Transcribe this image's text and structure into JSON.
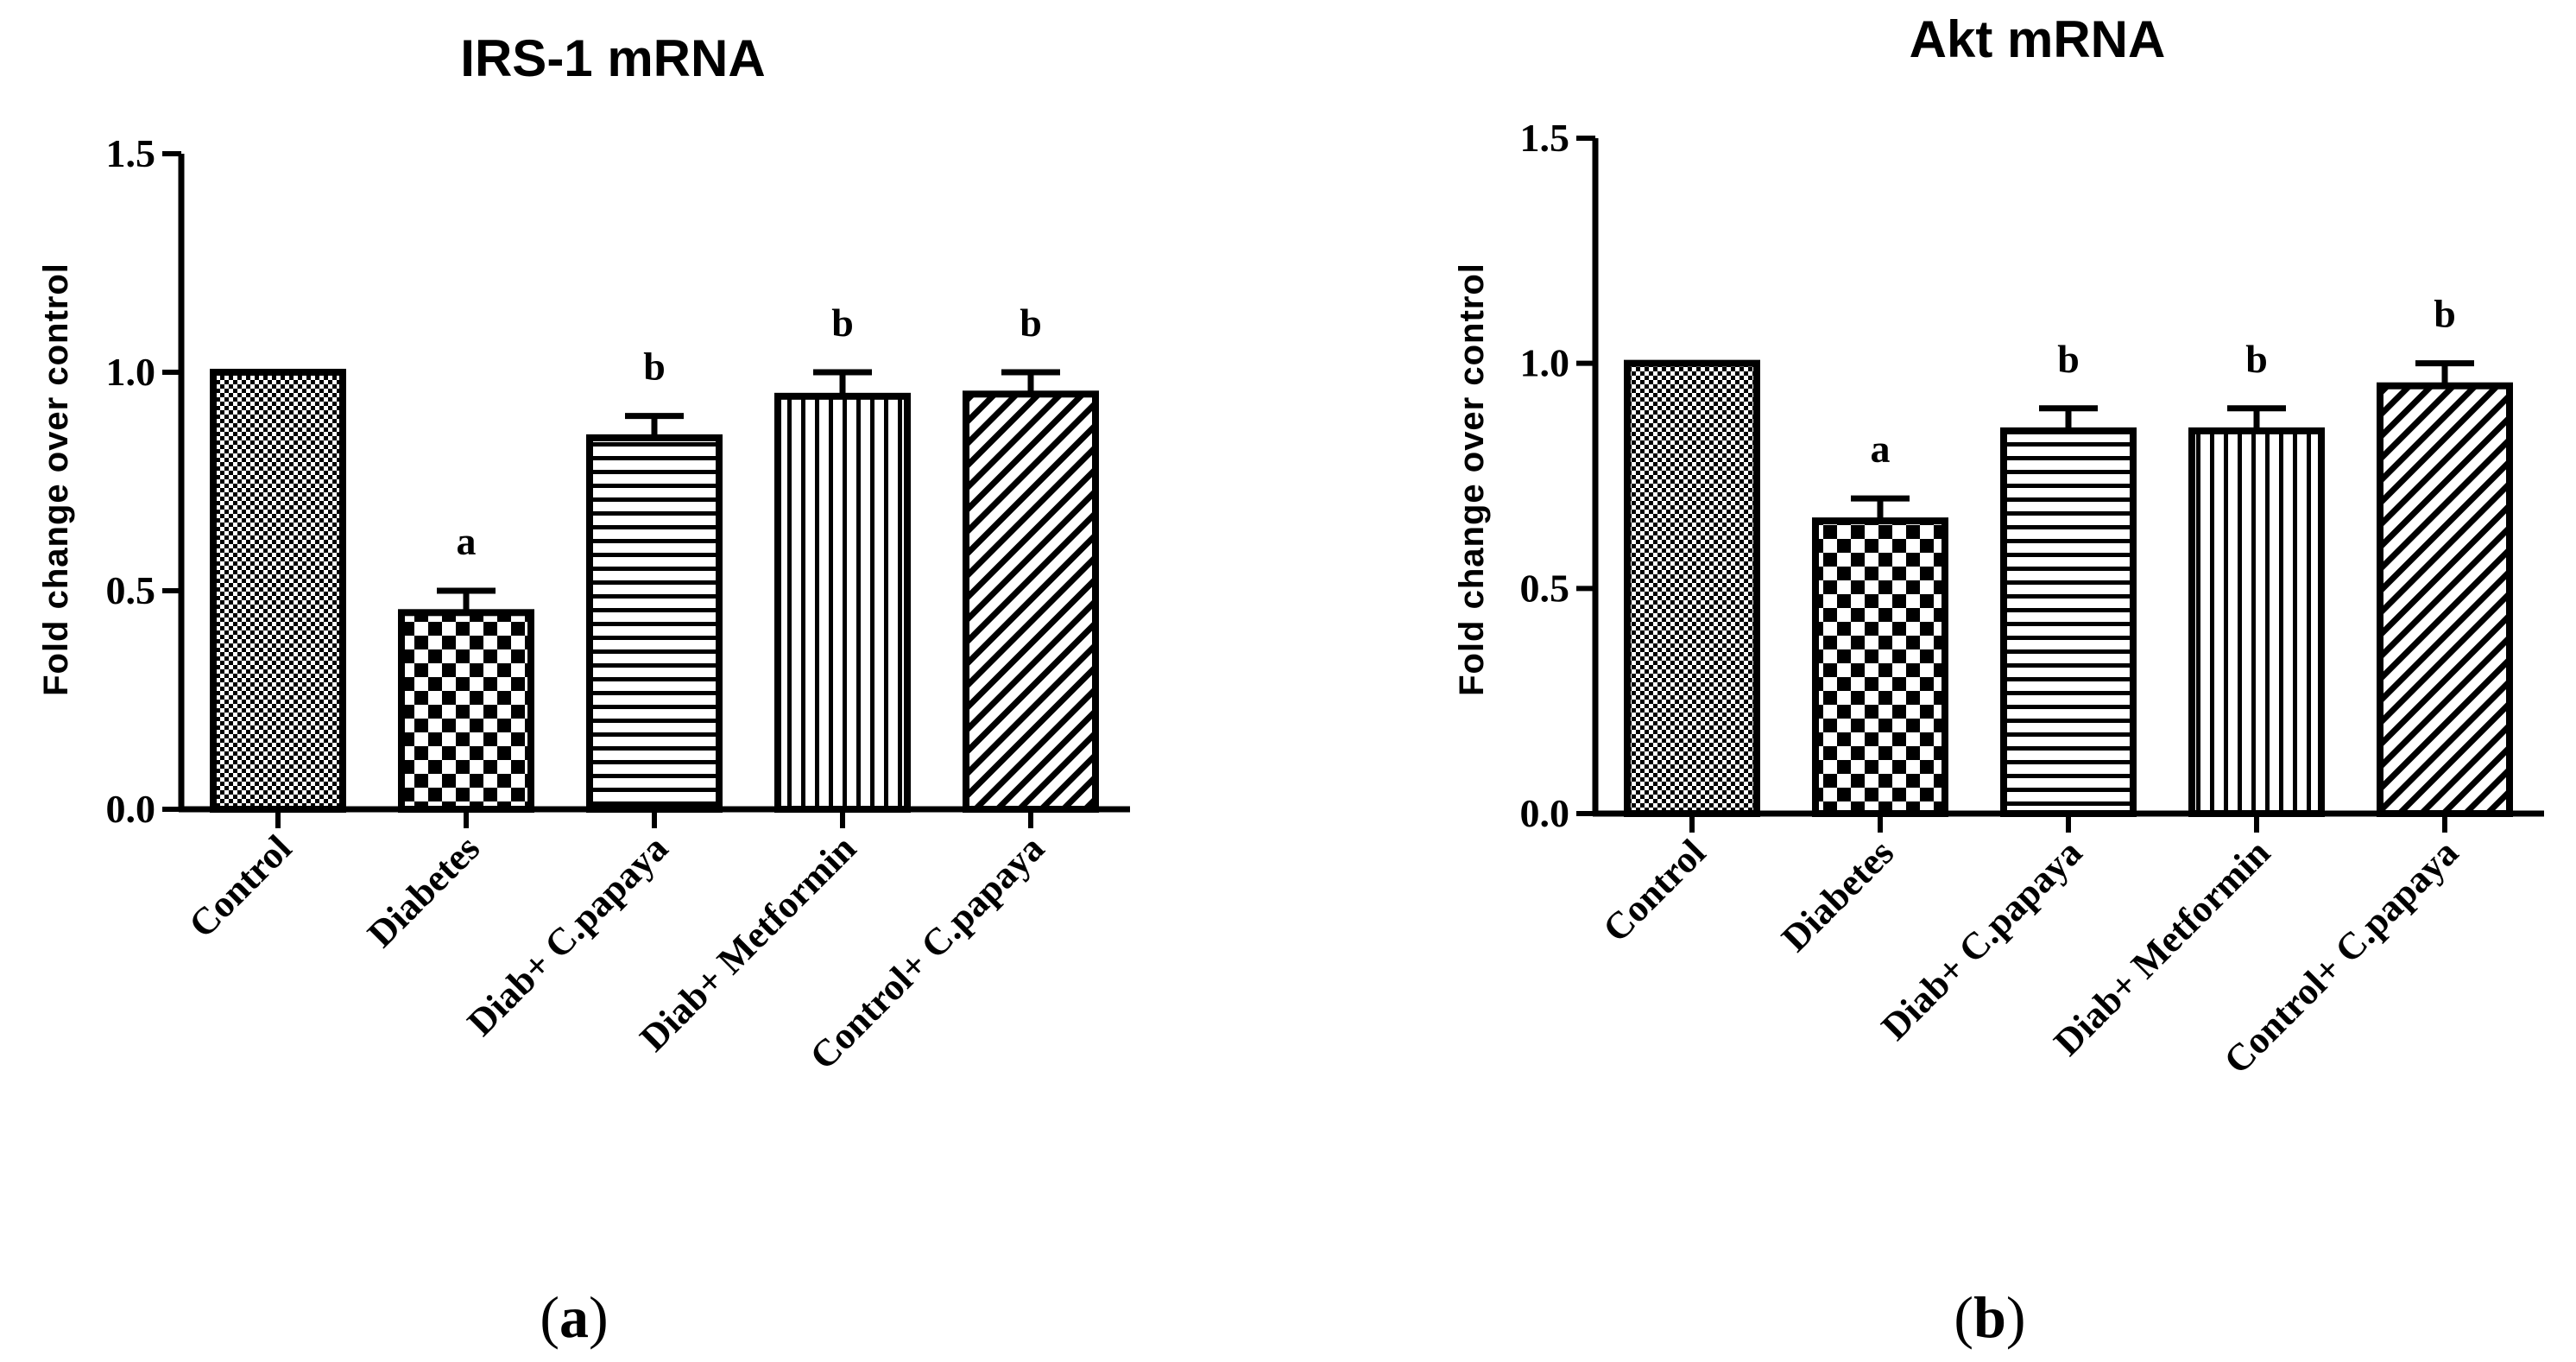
{
  "chart_data": [
    {
      "type": "bar",
      "title": "IRS-1 mRNA",
      "xlabel": "",
      "ylabel": "Fold change over control",
      "ylim": [
        0,
        1.5
      ],
      "ytick_labels": [
        "0.0",
        "0.5",
        "1.0",
        "1.5"
      ],
      "categories": [
        "Control",
        "Diabetes",
        "Diab+ C.papaya",
        "Diab+ Metformin",
        "Control+ C.papaya"
      ],
      "values": [
        1.0,
        0.45,
        0.85,
        0.945,
        0.95
      ],
      "errors": [
        0.0,
        0.05,
        0.05,
        0.055,
        0.05
      ],
      "significance": [
        "",
        "a",
        "b",
        "b",
        "b"
      ],
      "patterns": [
        "fine-check",
        "checker",
        "horizontal",
        "vertical",
        "diagonal"
      ],
      "panel_label": {
        "open": "(",
        "letter": "a",
        "close": ")"
      }
    },
    {
      "type": "bar",
      "title": "Akt mRNA",
      "xlabel": "",
      "ylabel": "Fold change over control",
      "ylim": [
        0,
        1.5
      ],
      "ytick_labels": [
        "0.0",
        "0.5",
        "1.0",
        "1.5"
      ],
      "categories": [
        "Control",
        "Diabetes",
        "Diab+ C.papaya",
        "Diab+ Metformin",
        "Control+ C.papaya"
      ],
      "values": [
        1.0,
        0.65,
        0.85,
        0.85,
        0.95
      ],
      "errors": [
        0.0,
        0.05,
        0.05,
        0.05,
        0.05
      ],
      "significance": [
        "",
        "a",
        "b",
        "b",
        "b"
      ],
      "patterns": [
        "fine-check",
        "checker",
        "horizontal",
        "vertical",
        "diagonal"
      ],
      "panel_label": {
        "open": "(",
        "letter": "b",
        "close": ")"
      }
    }
  ]
}
